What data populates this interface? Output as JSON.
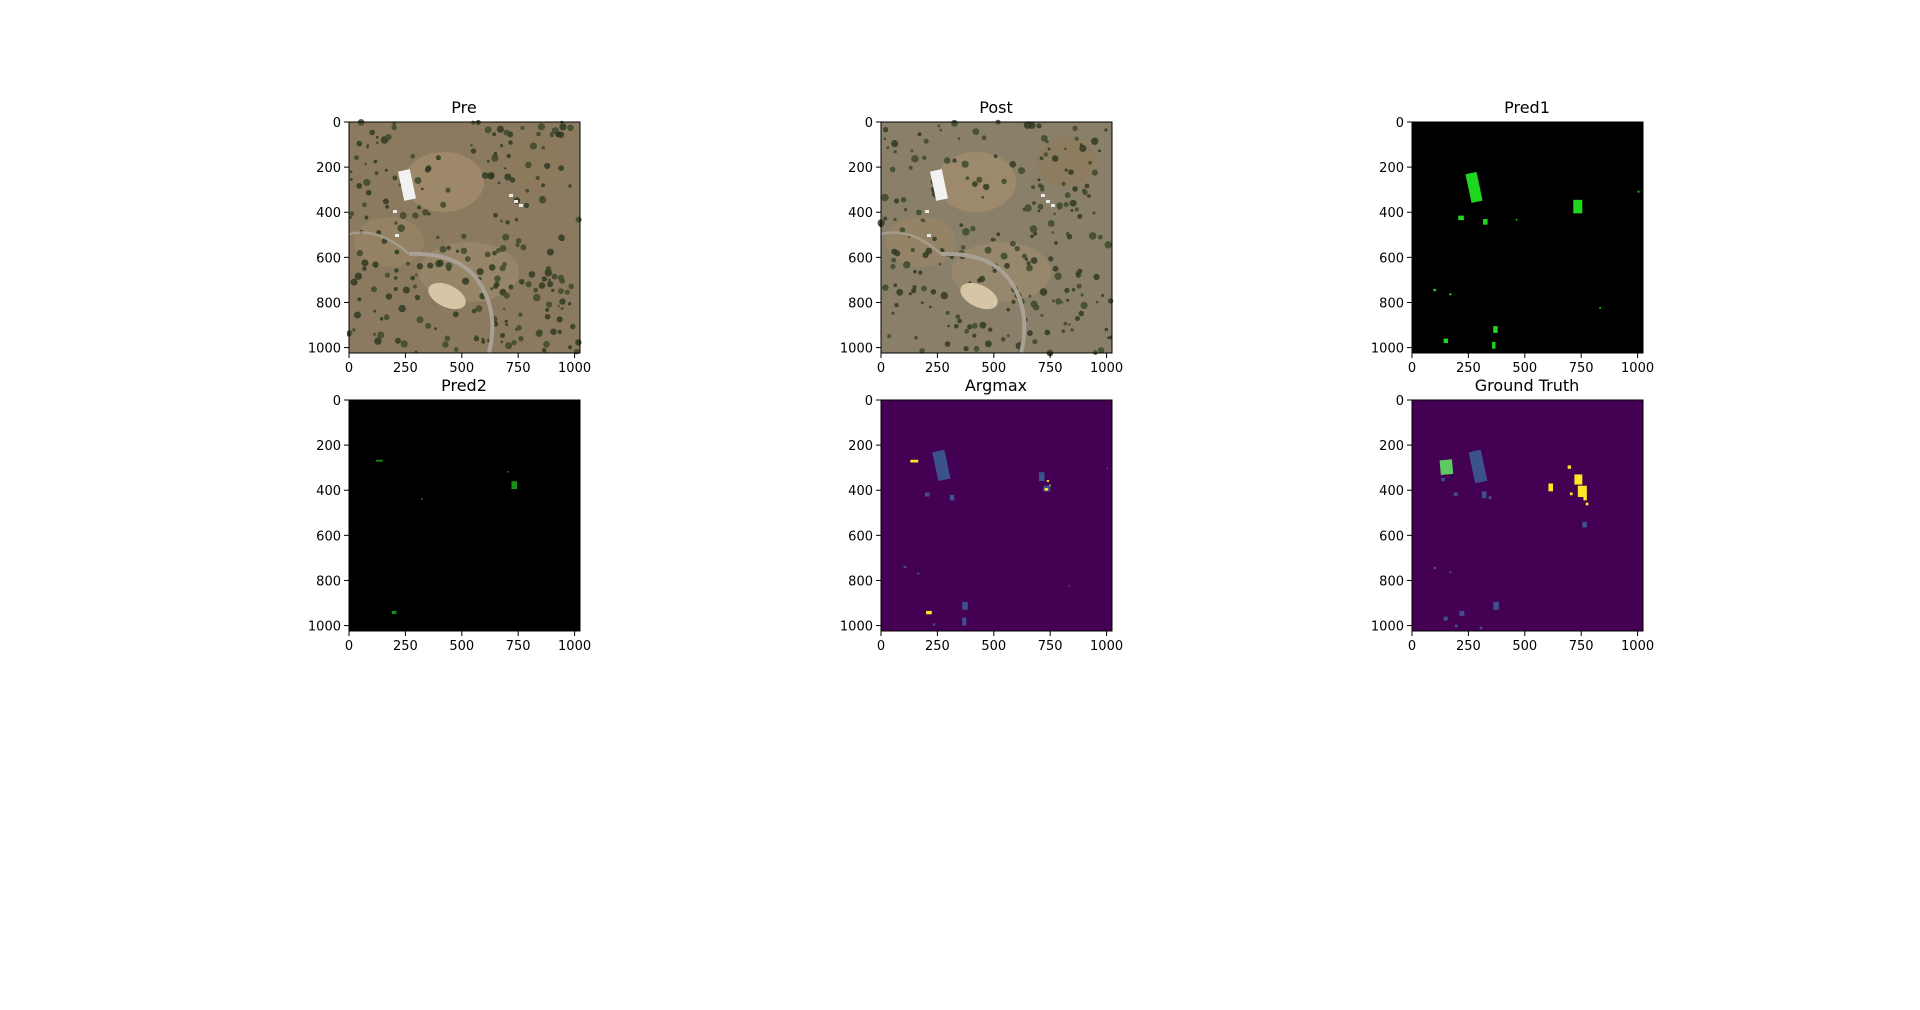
{
  "panels": [
    {
      "title": "Pre",
      "kind": "pre"
    },
    {
      "title": "Post",
      "kind": "post"
    },
    {
      "title": "Pred1",
      "kind": "pred1"
    },
    {
      "title": "Pred2",
      "kind": "pred2"
    },
    {
      "title": "Argmax",
      "kind": "argmax"
    },
    {
      "title": "Ground Truth",
      "kind": "gt"
    }
  ],
  "x_ticks": [
    "0",
    "250",
    "500",
    "750",
    "1000"
  ],
  "y_ticks": [
    "0",
    "200",
    "400",
    "600",
    "800",
    "1000"
  ],
  "colors": {
    "mask_background": "#000000",
    "pred_green": "#1fd71f",
    "viridis_bg": "#440154",
    "viridis_blue": "#3b528b",
    "viridis_green": "#5ec962",
    "viridis_yellow": "#fde725",
    "terrain": "#8b7a60",
    "trees": "#2f3b22",
    "road": "#a9a195",
    "building": "#f2f2f2",
    "pad": "#d7c6a6"
  }
}
